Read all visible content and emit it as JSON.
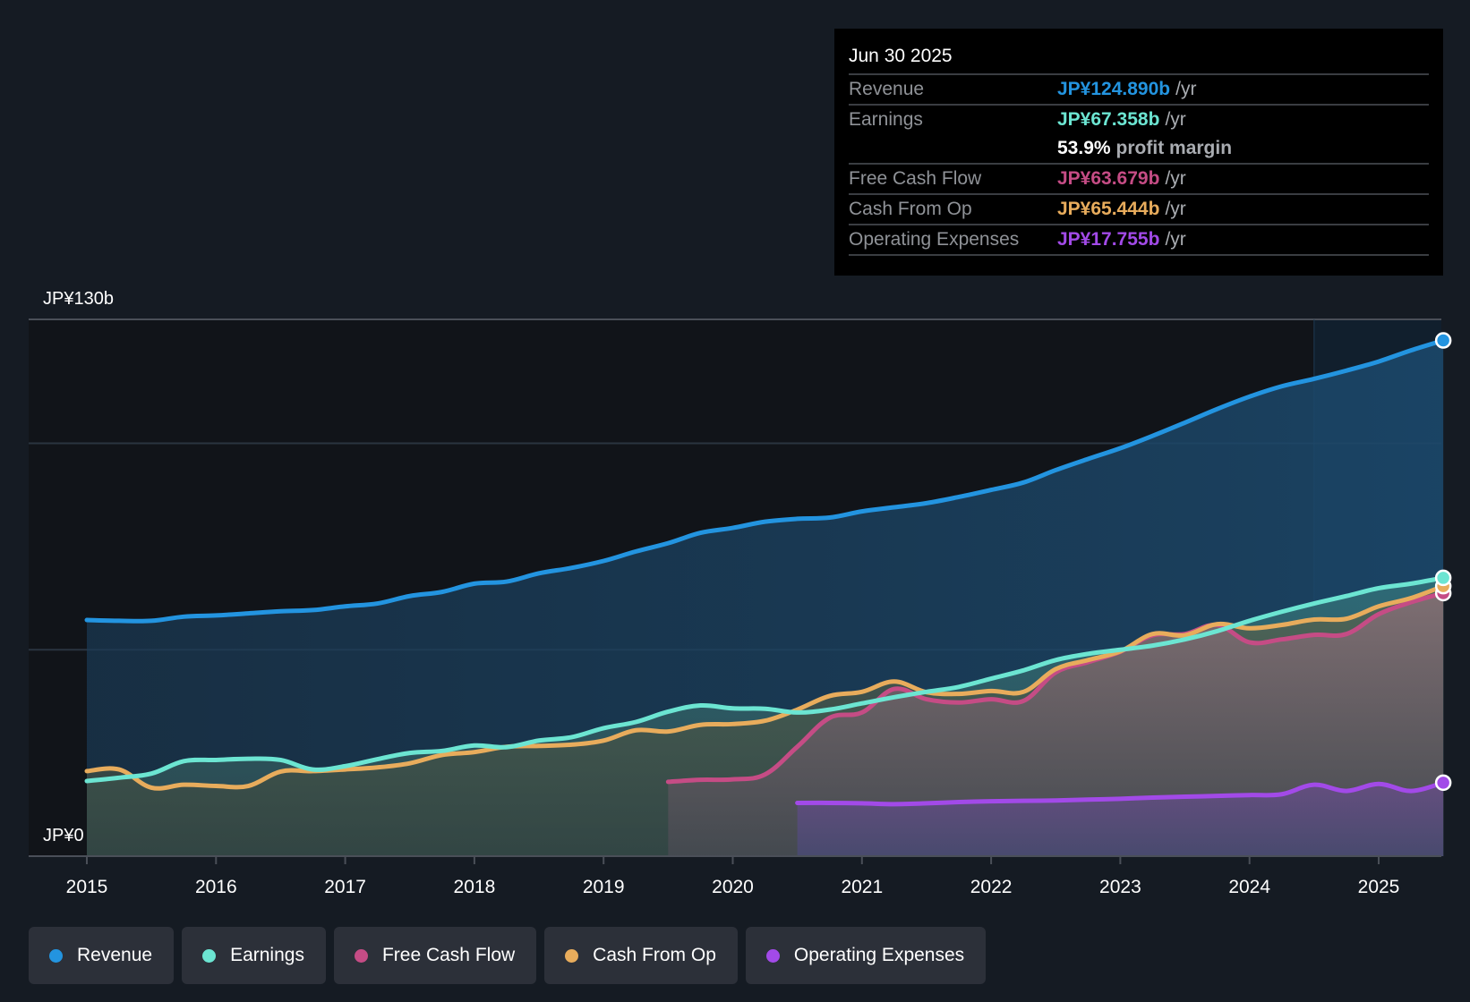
{
  "tooltip": {
    "date": "Jun 30 2025",
    "rows": [
      {
        "label": "Revenue",
        "value": "JP¥124.890b",
        "unit": "/yr",
        "color": "#2394e0"
      },
      {
        "label": "Earnings",
        "value": "JP¥67.358b",
        "unit": "/yr",
        "color": "#6ce5d2"
      },
      {
        "label": "Free Cash Flow",
        "value": "JP¥63.679b",
        "unit": "/yr",
        "color": "#c54c85"
      },
      {
        "label": "Cash From Op",
        "value": "JP¥65.444b",
        "unit": "/yr",
        "color": "#e8ac5c"
      },
      {
        "label": "Operating Expenses",
        "value": "JP¥17.755b",
        "unit": "/yr",
        "color": "#a24ae8"
      }
    ],
    "margin": {
      "pct": "53.9%",
      "text": "profit margin"
    }
  },
  "legend": [
    {
      "label": "Revenue",
      "color": "#2394e0"
    },
    {
      "label": "Earnings",
      "color": "#6ce5d2"
    },
    {
      "label": "Free Cash Flow",
      "color": "#c54c85"
    },
    {
      "label": "Cash From Op",
      "color": "#e8ac5c"
    },
    {
      "label": "Operating Expenses",
      "color": "#a24ae8"
    }
  ],
  "chart_data": {
    "type": "area",
    "title": "",
    "xlabel": "",
    "ylabel": "",
    "y_top_label": "JP¥130b",
    "y_bottom_label": "JP¥0",
    "ylim": [
      0,
      130
    ],
    "xlim": [
      2014.55,
      2025.5
    ],
    "gridlines": [
      0,
      50,
      100,
      130
    ],
    "x_ticks": [
      "2015",
      "2016",
      "2017",
      "2018",
      "2019",
      "2020",
      "2021",
      "2022",
      "2023",
      "2024",
      "2025"
    ],
    "highlight_from": 2024.5,
    "legend_position": "bottom-left",
    "unit": "JP¥ billions",
    "series": [
      {
        "name": "Revenue",
        "color": "#2394e0",
        "x": [
          2015.0,
          2015.25,
          2015.5,
          2015.75,
          2016.0,
          2016.25,
          2016.5,
          2016.75,
          2017.0,
          2017.25,
          2017.5,
          2017.75,
          2018.0,
          2018.25,
          2018.5,
          2018.75,
          2019.0,
          2019.25,
          2019.5,
          2019.75,
          2020.0,
          2020.25,
          2020.5,
          2020.75,
          2021.0,
          2021.25,
          2021.5,
          2021.75,
          2022.0,
          2022.25,
          2022.5,
          2022.75,
          2023.0,
          2023.25,
          2023.5,
          2023.75,
          2024.0,
          2024.25,
          2024.5,
          2024.75,
          2025.0,
          2025.25,
          2025.5
        ],
        "values": [
          57.2,
          57.0,
          57.0,
          58.0,
          58.3,
          58.8,
          59.3,
          59.6,
          60.5,
          61.2,
          63.0,
          64.0,
          66.0,
          66.5,
          68.5,
          69.8,
          71.5,
          73.8,
          75.8,
          78.3,
          79.5,
          81.0,
          81.7,
          82.0,
          83.5,
          84.5,
          85.5,
          87.0,
          88.7,
          90.5,
          93.5,
          96.2,
          98.8,
          101.8,
          105.0,
          108.3,
          111.3,
          113.8,
          115.6,
          117.6,
          119.8,
          122.5,
          124.9
        ]
      },
      {
        "name": "Earnings",
        "color": "#6ce5d2",
        "x": [
          2015.0,
          2015.25,
          2015.5,
          2015.75,
          2016.0,
          2016.25,
          2016.5,
          2016.75,
          2017.0,
          2017.25,
          2017.5,
          2017.75,
          2018.0,
          2018.25,
          2018.5,
          2018.75,
          2019.0,
          2019.25,
          2019.5,
          2019.75,
          2020.0,
          2020.25,
          2020.5,
          2020.75,
          2021.0,
          2021.25,
          2021.5,
          2021.75,
          2022.0,
          2022.25,
          2022.5,
          2022.75,
          2023.0,
          2023.25,
          2023.5,
          2023.75,
          2024.0,
          2024.25,
          2024.5,
          2024.75,
          2025.0,
          2025.25,
          2025.5
        ],
        "values": [
          18.2,
          19.0,
          20.0,
          23.0,
          23.3,
          23.6,
          23.3,
          21.0,
          21.8,
          23.5,
          25.0,
          25.5,
          26.8,
          26.4,
          28.0,
          28.8,
          31.0,
          32.5,
          35.0,
          36.5,
          35.8,
          35.7,
          34.8,
          35.5,
          37.0,
          38.5,
          39.8,
          41.0,
          43.0,
          45.0,
          47.5,
          49.0,
          50.0,
          51.0,
          52.5,
          54.5,
          57.0,
          59.2,
          61.2,
          63.0,
          64.9,
          66.0,
          67.4
        ]
      },
      {
        "name": "Free Cash Flow",
        "color": "#c54c85",
        "x": [
          2019.5,
          2019.75,
          2020.0,
          2020.25,
          2020.5,
          2020.75,
          2021.0,
          2021.25,
          2021.5,
          2021.75,
          2022.0,
          2022.25,
          2022.5,
          2022.75,
          2023.0,
          2023.25,
          2023.5,
          2023.75,
          2024.0,
          2024.25,
          2024.5,
          2024.75,
          2025.0,
          2025.25,
          2025.5
        ],
        "values": [
          18.0,
          18.5,
          18.6,
          19.8,
          26.5,
          33.5,
          34.8,
          40.5,
          38.0,
          37.2,
          38.0,
          37.6,
          44.5,
          47.0,
          49.5,
          53.5,
          53.8,
          56.0,
          51.8,
          52.5,
          53.6,
          53.8,
          58.6,
          61.5,
          63.7
        ]
      },
      {
        "name": "Cash From Op",
        "color": "#e8ac5c",
        "x": [
          2015.0,
          2015.25,
          2015.5,
          2015.75,
          2016.0,
          2016.25,
          2016.5,
          2016.75,
          2017.0,
          2017.25,
          2017.5,
          2017.75,
          2018.0,
          2018.25,
          2018.5,
          2018.75,
          2019.0,
          2019.25,
          2019.5,
          2019.75,
          2020.0,
          2020.25,
          2020.5,
          2020.75,
          2021.0,
          2021.25,
          2021.5,
          2021.75,
          2022.0,
          2022.25,
          2022.5,
          2022.75,
          2023.0,
          2023.25,
          2023.5,
          2023.75,
          2024.0,
          2024.25,
          2024.5,
          2024.75,
          2025.0,
          2025.25,
          2025.5
        ],
        "values": [
          20.6,
          21.0,
          16.6,
          17.3,
          17.0,
          17.0,
          20.5,
          20.6,
          21.0,
          21.5,
          22.5,
          24.5,
          25.2,
          26.5,
          26.7,
          27.0,
          28.0,
          30.5,
          30.2,
          31.8,
          32.0,
          32.8,
          35.5,
          38.8,
          39.8,
          42.3,
          39.7,
          39.3,
          40.0,
          39.8,
          45.3,
          47.5,
          49.6,
          53.8,
          53.5,
          56.2,
          55.2,
          56.0,
          57.3,
          57.5,
          60.5,
          62.5,
          65.4
        ]
      },
      {
        "name": "Operating Expenses",
        "color": "#a24ae8",
        "x": [
          2020.5,
          2020.75,
          2021.0,
          2021.25,
          2021.5,
          2021.75,
          2022.0,
          2022.25,
          2022.5,
          2022.75,
          2023.0,
          2023.25,
          2023.5,
          2023.75,
          2024.0,
          2024.25,
          2024.5,
          2024.75,
          2025.0,
          2025.25,
          2025.5
        ],
        "values": [
          12.9,
          12.9,
          12.8,
          12.6,
          12.8,
          13.1,
          13.3,
          13.4,
          13.5,
          13.7,
          13.9,
          14.2,
          14.4,
          14.6,
          14.8,
          15.0,
          17.3,
          15.8,
          17.5,
          15.8,
          17.8
        ]
      }
    ]
  }
}
